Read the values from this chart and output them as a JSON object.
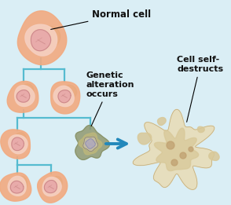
{
  "bg_color": "#daeef5",
  "cell_outer_color": "#f2aa80",
  "cell_inner_color": "#f5cfc0",
  "cell_nucleus_color": "#e8aaaa",
  "cell_nucleus_stroke": "#cc8888",
  "cell_spot_color": "#e8a878",
  "line_color": "#55bbd0",
  "arrow_color": "#2288bb",
  "text_color": "#111111",
  "genetic_cell_outer": "#909870",
  "genetic_cell_body": "#c0b87a",
  "genetic_nucleus_outer": "#c8c0a8",
  "genetic_nucleus_inner": "#b0aabb",
  "dead_cell_color": "#d8c898",
  "dead_cell_light": "#e8ddb8",
  "dead_cell_stroke": "#c0aa78",
  "dead_spot_color": "#c0a070",
  "title_normal_cell": "Normal cell",
  "title_genetic_l1": "Genetic",
  "title_genetic_l2": "alteration",
  "title_genetic_l3": "occurs",
  "title_destructs_l1": "Cell self-",
  "title_destructs_l2": "destructs"
}
